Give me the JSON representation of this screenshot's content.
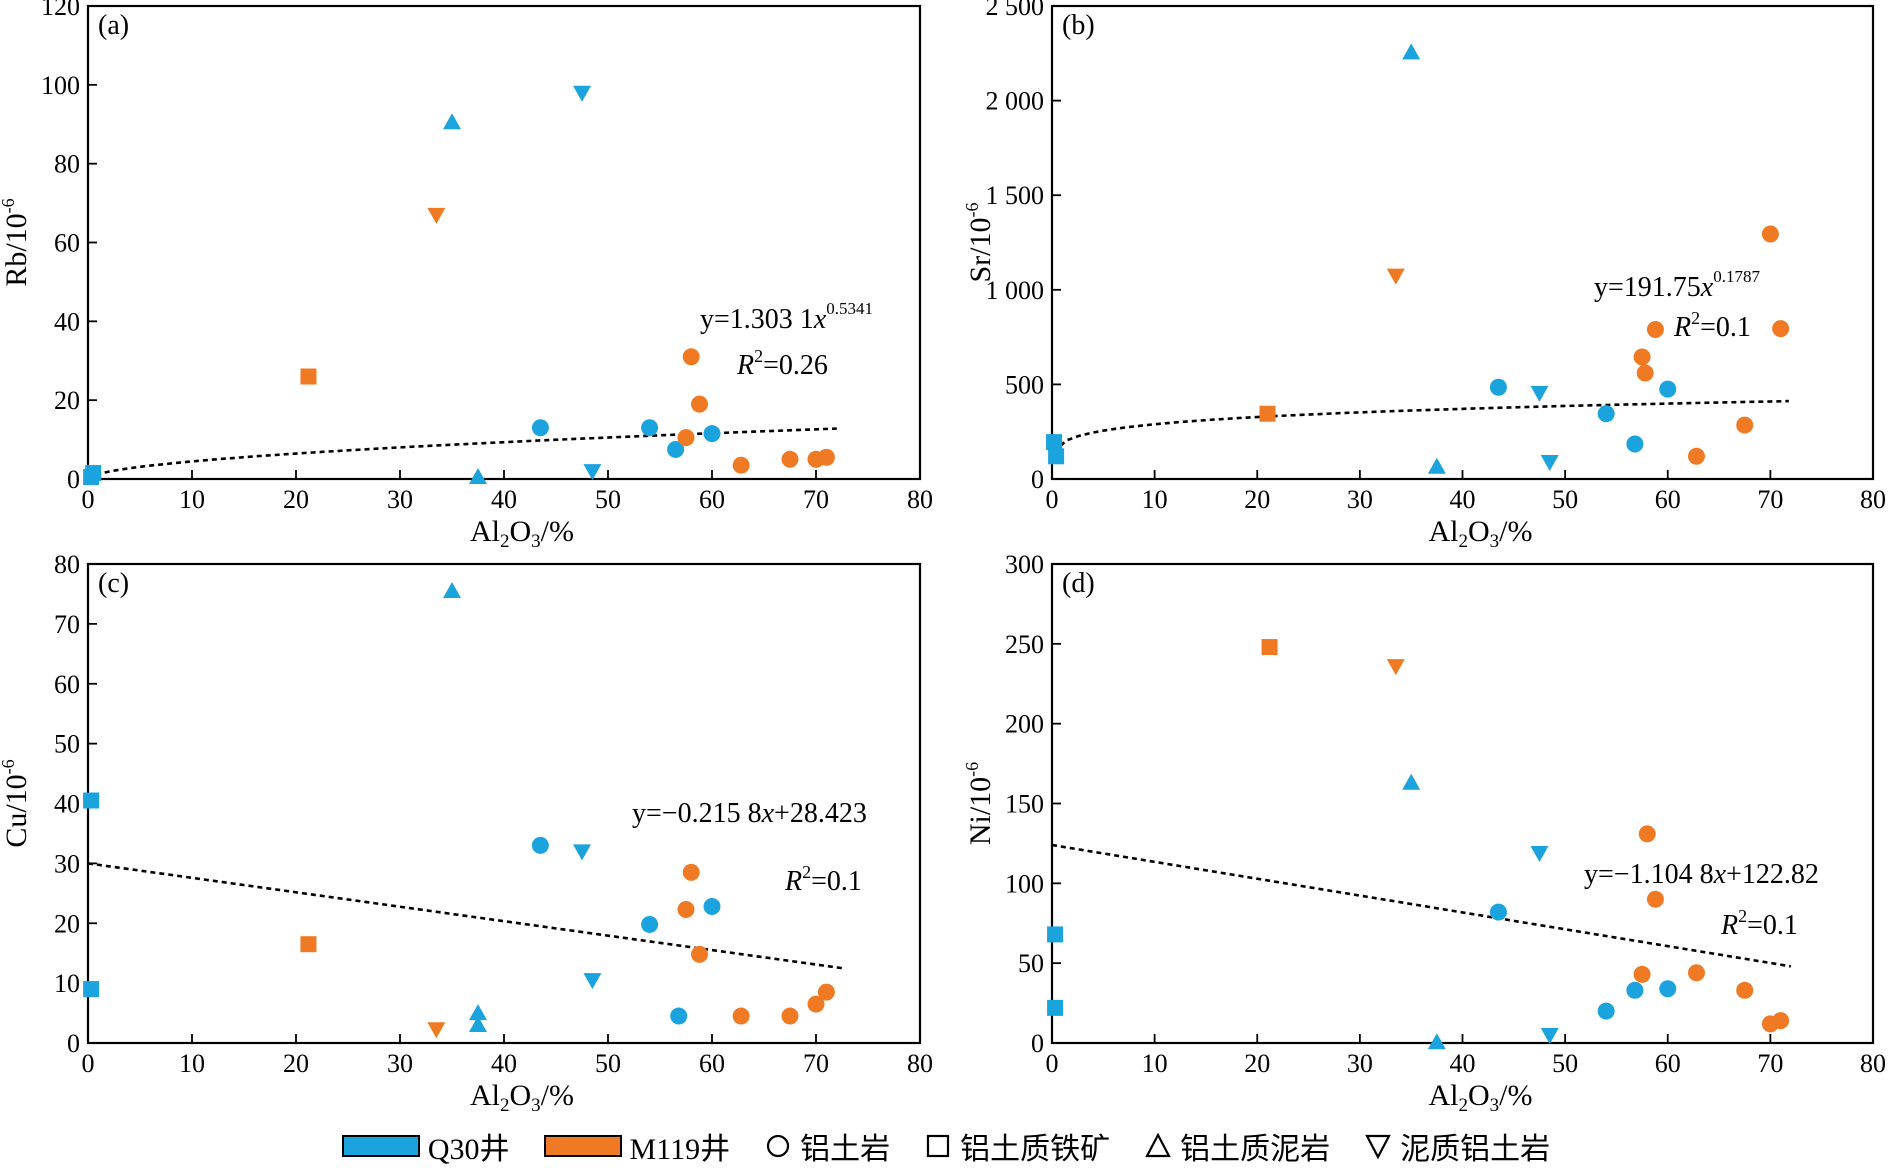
{
  "chart_data": [
    {
      "panel": "(a)",
      "type": "scatter",
      "xlabel": "Al2O3/%",
      "ylabel": "Rb/10-6",
      "xlim": [
        0,
        80
      ],
      "ylim": [
        0,
        120
      ],
      "xticks": [
        0,
        10,
        20,
        30,
        40,
        50,
        60,
        70,
        80
      ],
      "yticks": [
        0,
        20,
        40,
        60,
        80,
        100,
        120
      ],
      "ytick_labels": [
        "0",
        "20",
        "40",
        "60",
        "80",
        "100",
        "120"
      ],
      "equation": "y=1.303 1x^0.5341",
      "equation_parts": {
        "lead": "y=1.303 1",
        "x": "x",
        "exp": "0.5341"
      },
      "r2": "R^2=0.26",
      "r2_parts": {
        "R": "R",
        "sup": "2",
        "rest": "=0.26"
      },
      "trend": {
        "kind": "power",
        "a": 1.3031,
        "b": 0.5341,
        "x_range": [
          0,
          72
        ]
      },
      "series": [
        {
          "well": "Q30",
          "lithology": "bauxite",
          "points": [
            [
              43.5,
              13
            ],
            [
              54,
              13
            ],
            [
              56.5,
              7.5
            ],
            [
              60,
              11.5
            ]
          ]
        },
        {
          "well": "Q30",
          "lithology": "bauxitic iron ore",
          "points": [
            [
              0.3,
              0.5
            ],
            [
              0.5,
              1.5
            ]
          ]
        },
        {
          "well": "Q30",
          "lithology": "bauxitic mudstone",
          "points": [
            [
              35,
              90.5
            ],
            [
              37.5,
              0.5
            ]
          ]
        },
        {
          "well": "Q30",
          "lithology": "muddy bauxite",
          "points": [
            [
              47.5,
              98
            ],
            [
              48.5,
              2
            ]
          ]
        },
        {
          "well": "M119",
          "lithology": "bauxite",
          "points": [
            [
              57.5,
              10.5
            ],
            [
              58,
              31
            ],
            [
              58.8,
              19
            ],
            [
              62.8,
              3.5
            ],
            [
              67.5,
              5
            ],
            [
              70,
              5
            ],
            [
              71,
              5.5
            ]
          ]
        },
        {
          "well": "M119",
          "lithology": "bauxitic iron ore",
          "points": [
            [
              21.2,
              26
            ]
          ]
        },
        {
          "well": "M119",
          "lithology": "muddy bauxite",
          "points": [
            [
              33.5,
              67
            ]
          ]
        }
      ]
    },
    {
      "panel": "(b)",
      "type": "scatter",
      "xlabel": "Al2O3/%",
      "ylabel": "Sr/10-6",
      "xlim": [
        0,
        80
      ],
      "ylim": [
        0,
        2500
      ],
      "xticks": [
        0,
        10,
        20,
        30,
        40,
        50,
        60,
        70,
        80
      ],
      "yticks": [
        0,
        500,
        1000,
        1500,
        2000,
        2500
      ],
      "ytick_labels": [
        "0",
        "500",
        "1 000",
        "1 500",
        "2 000",
        "2 500"
      ],
      "equation": "y=191.75x^0.1787",
      "equation_parts": {
        "lead": "y=191.75",
        "x": "x",
        "exp": "0.1787"
      },
      "r2": "R^2=0.1",
      "r2_parts": {
        "R": "R",
        "sup": "2",
        "rest": "=0.1"
      },
      "trend": {
        "kind": "power",
        "a": 191.75,
        "b": 0.1787,
        "x_range": [
          0.2,
          71.8
        ]
      },
      "series": [
        {
          "well": "Q30",
          "lithology": "bauxite",
          "points": [
            [
              43.5,
              485
            ],
            [
              54,
              345
            ],
            [
              56.8,
              185
            ],
            [
              60,
              475
            ]
          ]
        },
        {
          "well": "Q30",
          "lithology": "bauxitic iron ore",
          "points": [
            [
              0.2,
              195
            ],
            [
              0.4,
              120
            ]
          ]
        },
        {
          "well": "Q30",
          "lithology": "bauxitic mudstone",
          "points": [
            [
              35,
              2255
            ],
            [
              37.5,
              65
            ]
          ]
        },
        {
          "well": "Q30",
          "lithology": "muddy bauxite",
          "points": [
            [
              47.5,
              455
            ],
            [
              48.5,
              90
            ]
          ]
        },
        {
          "well": "M119",
          "lithology": "bauxite",
          "points": [
            [
              57.5,
              645
            ],
            [
              57.8,
              560
            ],
            [
              58.8,
              790
            ],
            [
              62.8,
              120
            ],
            [
              67.5,
              285
            ],
            [
              70,
              1295
            ],
            [
              71,
              795
            ]
          ]
        },
        {
          "well": "M119",
          "lithology": "bauxitic iron ore",
          "points": [
            [
              21,
              345
            ]
          ]
        },
        {
          "well": "M119",
          "lithology": "muddy bauxite",
          "points": [
            [
              33.5,
              1075
            ]
          ]
        }
      ]
    },
    {
      "panel": "(c)",
      "type": "scatter",
      "xlabel": "Al2O3/%",
      "ylabel": "Cu/10-6",
      "xlim": [
        0,
        80
      ],
      "ylim": [
        0,
        80
      ],
      "xticks": [
        0,
        10,
        20,
        30,
        40,
        50,
        60,
        70,
        80
      ],
      "yticks": [
        0,
        10,
        20,
        30,
        40,
        50,
        60,
        70,
        80
      ],
      "ytick_labels": [
        "0",
        "10",
        "20",
        "30",
        "40",
        "50",
        "60",
        "70",
        "80"
      ],
      "equation": "y=−0.215 8x+28.423",
      "equation_parts": {
        "lead": "y=−0.215 8",
        "x": "x",
        "tail": "+28.423"
      },
      "r2": "R^2=0.1",
      "r2_parts": {
        "R": "R",
        "sup": "2",
        "rest": "=0.1"
      },
      "trend": {
        "kind": "line",
        "x0": 0,
        "y0": 30,
        "x1": 72.5,
        "y1": 12.5
      },
      "series": [
        {
          "well": "Q30",
          "lithology": "bauxite",
          "points": [
            [
              43.5,
              33
            ],
            [
              54,
              19.8
            ],
            [
              56.8,
              4.5
            ],
            [
              60,
              22.8
            ]
          ]
        },
        {
          "well": "Q30",
          "lithology": "bauxitic iron ore",
          "points": [
            [
              0.3,
              40.5
            ],
            [
              0.3,
              9
            ]
          ]
        },
        {
          "well": "Q30",
          "lithology": "bauxitic mudstone",
          "points": [
            [
              35,
              75.5
            ],
            [
              37.5,
              5
            ],
            [
              37.5,
              3
            ]
          ]
        },
        {
          "well": "Q30",
          "lithology": "muddy bauxite",
          "points": [
            [
              47.5,
              32
            ],
            [
              48.5,
              10.5
            ]
          ]
        },
        {
          "well": "M119",
          "lithology": "bauxite",
          "points": [
            [
              57.5,
              22.3
            ],
            [
              58,
              28.5
            ],
            [
              58.8,
              14.8
            ],
            [
              62.8,
              4.5
            ],
            [
              67.5,
              4.5
            ],
            [
              70,
              6.5
            ],
            [
              71,
              8.5
            ]
          ]
        },
        {
          "well": "M119",
          "lithology": "bauxitic iron ore",
          "points": [
            [
              21.2,
              16.5
            ]
          ]
        },
        {
          "well": "M119",
          "lithology": "muddy bauxite",
          "points": [
            [
              33.5,
              2.3
            ]
          ]
        }
      ]
    },
    {
      "panel": "(d)",
      "type": "scatter",
      "xlabel": "Al2O3/%",
      "ylabel": "Ni/10-6",
      "xlim": [
        0,
        80
      ],
      "ylim": [
        0,
        300
      ],
      "xticks": [
        0,
        10,
        20,
        30,
        40,
        50,
        60,
        70,
        80
      ],
      "yticks": [
        0,
        50,
        100,
        150,
        200,
        250,
        300
      ],
      "ytick_labels": [
        "0",
        "50",
        "100",
        "150",
        "200",
        "250",
        "300"
      ],
      "equation": "y=−1.104 8x+122.82",
      "equation_parts": {
        "lead": "y=−1.104 8",
        "x": "x",
        "tail": "+122.82"
      },
      "r2": "R^2=0.1",
      "r2_parts": {
        "R": "R",
        "sup": "2",
        "rest": "=0.1"
      },
      "trend": {
        "kind": "line",
        "x0": 0,
        "y0": 124,
        "x1": 72,
        "y1": 48
      },
      "series": [
        {
          "well": "Q30",
          "lithology": "bauxite",
          "points": [
            [
              43.5,
              82
            ],
            [
              54,
              20
            ],
            [
              56.8,
              33
            ],
            [
              60,
              34
            ]
          ]
        },
        {
          "well": "Q30",
          "lithology": "bauxitic iron ore",
          "points": [
            [
              0.3,
              68
            ],
            [
              0.3,
              22
            ]
          ]
        },
        {
          "well": "Q30",
          "lithology": "bauxitic mudstone",
          "points": [
            [
              35,
              163
            ],
            [
              37.5,
              0.5
            ]
          ]
        },
        {
          "well": "Q30",
          "lithology": "muddy bauxite",
          "points": [
            [
              47.5,
              119
            ],
            [
              48.5,
              5
            ]
          ]
        },
        {
          "well": "M119",
          "lithology": "bauxite",
          "points": [
            [
              57.5,
              43
            ],
            [
              58,
              131
            ],
            [
              58.8,
              90
            ],
            [
              62.8,
              44
            ],
            [
              67.5,
              33
            ],
            [
              70,
              12
            ],
            [
              71,
              14
            ]
          ]
        },
        {
          "well": "M119",
          "lithology": "bauxitic iron ore",
          "points": [
            [
              21.2,
              248
            ]
          ]
        },
        {
          "well": "M119",
          "lithology": "muddy bauxite",
          "points": [
            [
              33.5,
              236
            ]
          ]
        }
      ]
    }
  ],
  "axis_label_parts": {
    "al2o3": {
      "a": "Al",
      "s1": "2",
      "b": "O",
      "s2": "3",
      "c": "/%"
    }
  },
  "ylabel_parts": [
    "Rb/10",
    "Sr/10",
    "Cu/10",
    "Ni/10"
  ],
  "ylabel_exp": "-6",
  "colors": {
    "Q30": "#1aa3dc",
    "M119": "#f07a24"
  },
  "legend": {
    "q30": "Q30井",
    "m119": "M119井",
    "bauxite": "铝土岩",
    "iron_ore": "铝土质铁矿",
    "mudstone": "铝土质泥岩",
    "muddy_bauxite": "泥质铝土岩",
    "bauxite_icon": "circle-outline-icon",
    "iron_ore_icon": "square-outline-icon",
    "mudstone_icon": "triangle-up-outline-icon",
    "muddy_bauxite_icon": "triangle-down-outline-icon"
  }
}
